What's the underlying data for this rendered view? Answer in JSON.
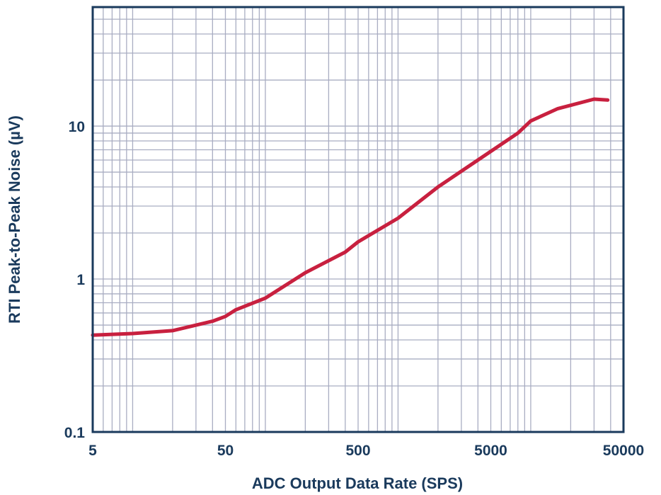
{
  "chart_data": {
    "type": "line",
    "xlabel": "ADC Output Data Rate (SPS)",
    "ylabel": "RTI Peak-to-Peak Noise (µV)",
    "x_scale": "log",
    "y_scale": "log",
    "xlim": [
      5,
      50000
    ],
    "ylim": [
      0.1,
      60
    ],
    "x_ticks": [
      {
        "value": 5,
        "label": "5"
      },
      {
        "value": 50,
        "label": "50"
      },
      {
        "value": 500,
        "label": "500"
      },
      {
        "value": 5000,
        "label": "5000"
      },
      {
        "value": 50000,
        "label": "50000"
      }
    ],
    "y_ticks": [
      {
        "value": 0.1,
        "label": "0.1"
      },
      {
        "value": 1,
        "label": "1"
      },
      {
        "value": 10,
        "label": "10"
      }
    ],
    "grid": true,
    "series": [
      {
        "color": "#c8203f",
        "x": [
          5,
          10,
          20,
          40,
          50,
          60,
          100,
          200,
          400,
          500,
          1000,
          2000,
          4000,
          8000,
          10000,
          16000,
          30000,
          38000
        ],
        "y": [
          0.43,
          0.44,
          0.46,
          0.53,
          0.57,
          0.63,
          0.75,
          1.1,
          1.5,
          1.75,
          2.5,
          4.0,
          6.0,
          9.0,
          10.8,
          13.0,
          15.0,
          14.8
        ]
      }
    ]
  }
}
